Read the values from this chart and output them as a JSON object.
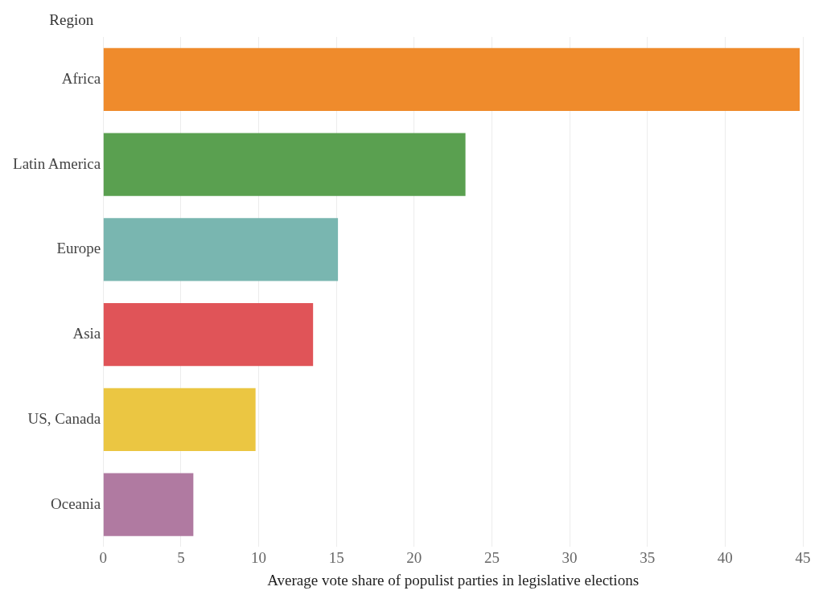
{
  "chart_data": {
    "type": "bar",
    "orientation": "horizontal",
    "ylabel": "Region",
    "xlabel": "Average vote share of populist parties in legislative elections",
    "categories": [
      "Africa",
      "Latin America",
      "Europe",
      "Asia",
      "US, Canada",
      "Oceania"
    ],
    "values": [
      44.8,
      23.3,
      15.1,
      13.5,
      9.8,
      5.8
    ],
    "colors": [
      "#ef8b2c",
      "#5aa050",
      "#79b6b0",
      "#e05458",
      "#ebc642",
      "#b07aa1"
    ],
    "xlim": [
      0,
      45
    ],
    "xticks": [
      0,
      5,
      10,
      15,
      20,
      25,
      30,
      35,
      40,
      45
    ],
    "grid": "x",
    "legend": false
  }
}
